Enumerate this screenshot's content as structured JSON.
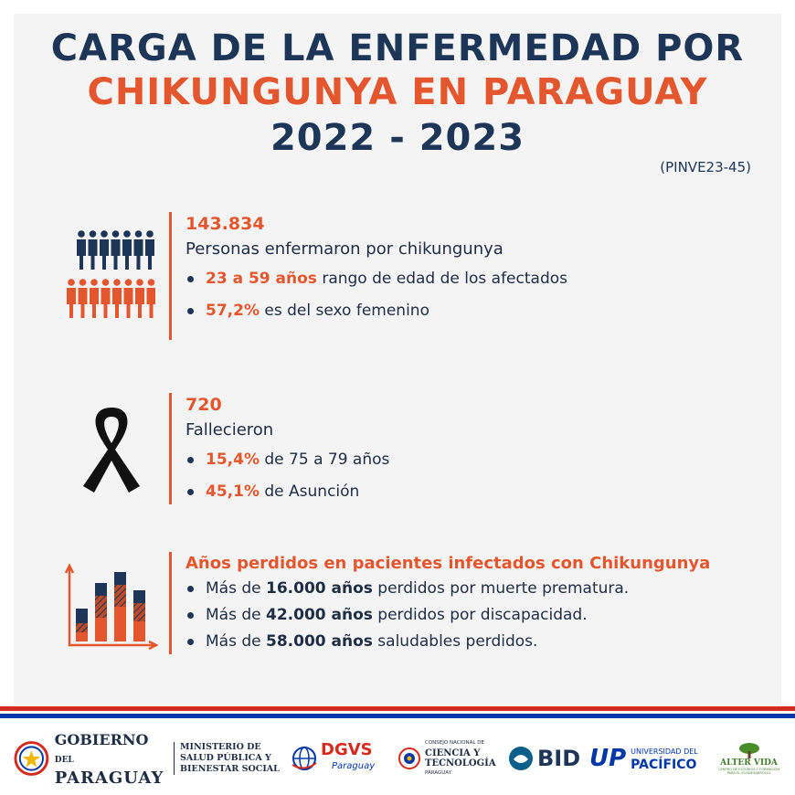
{
  "header": {
    "title_line1": "CARGA DE LA ENFERMEDAD POR",
    "title_line2": "CHIKUNGUNYA EN PARAGUAY",
    "title_line3": "2022 - 2023",
    "project_code": "(PINVE23-45)"
  },
  "section_people": {
    "icon": "people-icon",
    "number": "143.834",
    "description": "Personas enfermaron por chikungunya",
    "bullets": [
      {
        "highlight": "23 a 59 años",
        "text": " rango de edad de los afectados"
      },
      {
        "highlight": "57,2%",
        "text": " es del sexo femenino"
      }
    ]
  },
  "section_deaths": {
    "icon": "mourning-ribbon-icon",
    "number": "720",
    "description": "Fallecieron",
    "bullets": [
      {
        "highlight": "15,4%",
        "text": " de 75 a 79 años"
      },
      {
        "highlight": "45,1%",
        "text": " de Asunción"
      }
    ]
  },
  "section_years": {
    "icon": "bar-chart-icon",
    "heading": "Años perdidos en pacientes infectados con Chikungunya",
    "bullets": [
      {
        "pre": "Más de ",
        "bold": "16.000 años",
        "post": " perdidos por muerte prematura."
      },
      {
        "pre": "Más de ",
        "bold": "42.000 años",
        "post": " perdidos por discapacidad."
      },
      {
        "pre": "Más de ",
        "bold": "58.000 años",
        "post": " saludables perdidos."
      }
    ]
  },
  "colors": {
    "navy": "#1d3557",
    "orange": "#e4572e",
    "flag_red": "#d52b1e",
    "flag_blue": "#0038a8"
  },
  "logos": {
    "gobierno_line1": "GOBIERNO",
    "gobierno_del": "DEL",
    "gobierno_line2": "PARAGUAY",
    "ministerio_line1": "MINISTERIO DE",
    "ministerio_line2": "SALUD PÚBLICA Y",
    "ministerio_line3": "BIENESTAR SOCIAL",
    "dgvs": "DGVS",
    "dgvs_sub": "Paraguay",
    "conacyt_line1": "CONSEJO NACIONAL DE",
    "conacyt_line2": "CIENCIA Y",
    "conacyt_line3": "TECNOLOGÍA",
    "conacyt_line4": "PARAGUAY",
    "bid": "BID",
    "up_mark": "UP",
    "up_line1": "UNIVERSIDAD DEL",
    "up_line2": "PACÍFICO",
    "alter_vida": "ALTER VIDA",
    "alter_sub1": "CENTRO DE ESTUDIOS Y FORMACIÓN",
    "alter_sub2": "PARA EL ECODESARROLLO"
  }
}
